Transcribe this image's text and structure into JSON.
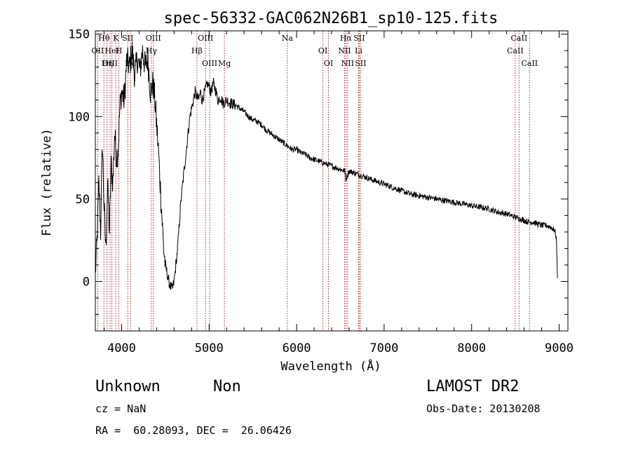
{
  "chart_data": {
    "type": "line",
    "title": "spec-56332-GAC062N26B1_sp10-125.fits",
    "xlabel": "Wavelength (Å)",
    "ylabel": "Flux (relative)",
    "xlim": [
      3700,
      9100
    ],
    "ylim": [
      -30,
      152
    ],
    "x_ticks": [
      4000,
      5000,
      6000,
      7000,
      8000,
      9000
    ],
    "x_tick_labels": [
      "4000",
      "5000",
      "6000",
      "7000",
      "8000",
      "9000"
    ],
    "y_ticks": [
      0,
      50,
      100,
      150
    ],
    "y_tick_labels": [
      "0",
      "50",
      "100",
      "150"
    ],
    "grid": false,
    "series": [
      {
        "x": [
          3700,
          3720,
          3740,
          3760,
          3780,
          3800,
          3820,
          3840,
          3860,
          3880,
          3900,
          3920,
          3940,
          3960,
          3980,
          4000,
          4030,
          4060,
          4090,
          4120,
          4150,
          4180,
          4210,
          4240,
          4270,
          4300,
          4330,
          4360,
          4380,
          4400,
          4420,
          4440,
          4460,
          4480,
          4500,
          4520,
          4540,
          4560,
          4580,
          4600,
          4620,
          4640,
          4660,
          4680,
          4700,
          4720,
          4740,
          4760,
          4780,
          4800,
          4820,
          4840,
          4860,
          4880,
          4900,
          4920,
          4950,
          4980,
          5000,
          5020,
          5050,
          5080,
          5100,
          5130,
          5160,
          5200,
          5250,
          5300,
          5350,
          5400,
          5450,
          5500,
          5550,
          5600,
          5650,
          5700,
          5750,
          5800,
          5850,
          5900,
          5950,
          6000,
          6050,
          6100,
          6150,
          6200,
          6250,
          6300,
          6350,
          6400,
          6450,
          6500,
          6550,
          6563,
          6600,
          6650,
          6700,
          6750,
          6800,
          6900,
          7000,
          7100,
          7200,
          7300,
          7400,
          7500,
          7600,
          7700,
          7800,
          7900,
          8000,
          8100,
          8200,
          8300,
          8400,
          8500,
          8550,
          8600,
          8650,
          8700,
          8750,
          8800,
          8850,
          8900,
          8950,
          8970,
          8980
        ],
        "y": [
          5,
          25,
          60,
          30,
          85,
          45,
          20,
          60,
          30,
          70,
          60,
          90,
          75,
          80,
          105,
          115,
          110,
          135,
          130,
          140,
          125,
          135,
          128,
          140,
          130,
          135,
          115,
          120,
          110,
          95,
          80,
          60,
          40,
          20,
          10,
          5,
          0,
          -3,
          -5,
          0,
          10,
          20,
          35,
          50,
          60,
          70,
          80,
          90,
          100,
          105,
          110,
          115,
          112,
          110,
          115,
          110,
          115,
          120,
          118,
          115,
          120,
          115,
          110,
          112,
          108,
          110,
          108,
          107,
          105,
          103,
          100,
          98,
          97,
          95,
          92,
          90,
          88,
          86,
          84,
          82,
          80,
          80,
          78,
          77,
          75,
          74,
          73,
          72,
          71,
          70,
          69,
          68,
          67,
          62,
          67,
          66,
          65,
          64,
          63,
          61,
          59,
          57,
          55,
          53,
          52,
          51,
          50,
          49,
          48,
          47,
          46,
          45,
          44,
          42,
          41,
          39,
          38,
          37,
          36,
          36,
          35,
          34,
          34,
          33,
          31,
          25,
          2
        ]
      }
    ],
    "line_marks": [
      {
        "label": "Hθ",
        "x": 3798
      },
      {
        "label": "OII",
        "x": 3727
      },
      {
        "label": "OIII",
        "x": 3869
      },
      {
        "label": "K",
        "x": 3934
      },
      {
        "label": "HeI",
        "x": 3889
      },
      {
        "label": "Hη",
        "x": 3835
      },
      {
        "label": "SII",
        "x": 4070
      },
      {
        "label": "H",
        "x": 3969
      },
      {
        "label": "Hδ",
        "x": 4102
      },
      {
        "label": "OIII",
        "x": 4363
      },
      {
        "label": "Hγ",
        "x": 4340
      },
      {
        "label": "OIII",
        "x": 5007
      },
      {
        "label": "OIII",
        "x": 4959
      },
      {
        "label": "Hβ",
        "x": 4861
      },
      {
        "label": "Mg",
        "x": 5175
      },
      {
        "label": "Na",
        "x": 5894
      },
      {
        "label": "OI",
        "x": 6300
      },
      {
        "label": "OI",
        "x": 6364
      },
      {
        "label": "Hα",
        "x": 6563
      },
      {
        "label": "NII",
        "x": 6548
      },
      {
        "label": "NII",
        "x": 6583
      },
      {
        "label": "SII",
        "x": 6716
      },
      {
        "label": "Li",
        "x": 6708
      },
      {
        "label": "SII",
        "x": 6731
      },
      {
        "label": "CaII",
        "x": 8542
      },
      {
        "label": "CaII",
        "x": 8498
      },
      {
        "label": "CaII",
        "x": 8662
      }
    ]
  },
  "footer": {
    "object_class": "Unknown",
    "subclass": "Non",
    "survey": "LAMOST DR2",
    "cz": "cz = NaN",
    "obs_date": "Obs-Date: 20130208",
    "radec": "RA =  60.28093, DEC =  26.06426"
  },
  "colors": {
    "spectrum": "#000000",
    "line_marks": "#b22222",
    "axes": "#000000"
  }
}
